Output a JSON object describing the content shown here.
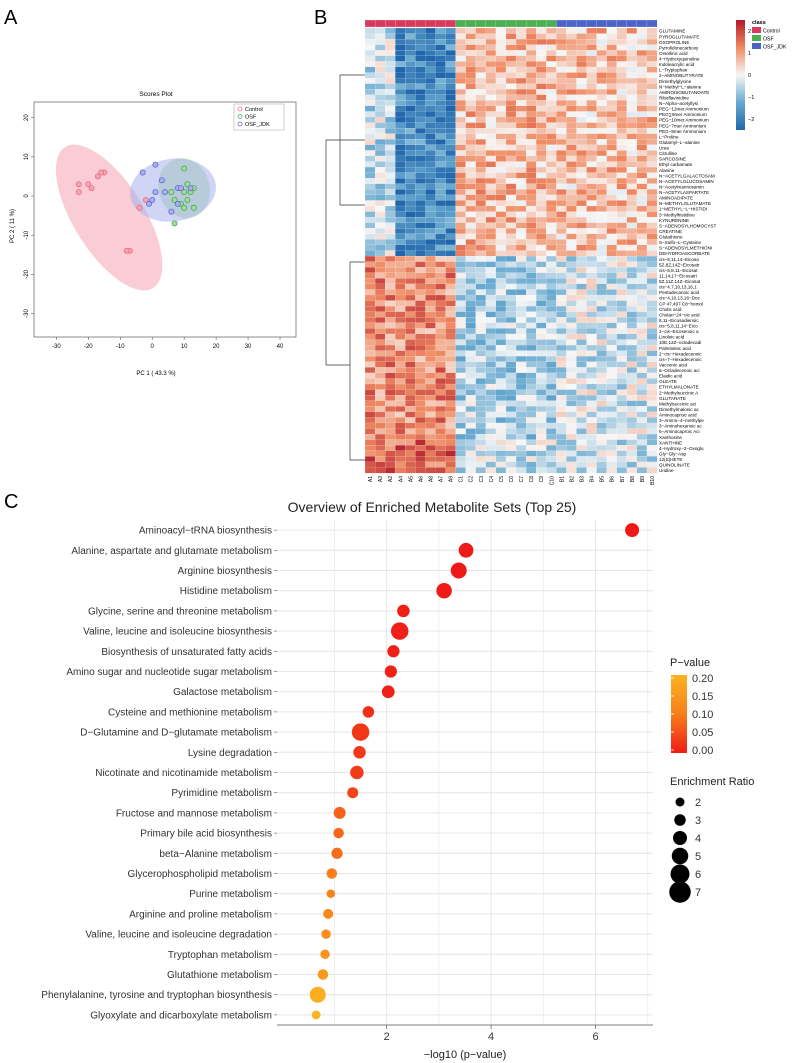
{
  "panel_labels": [
    "A",
    "B",
    "C"
  ],
  "chart_data": [
    {
      "id": "A",
      "type": "scatter",
      "title": "Scores Plot",
      "xlabel": "PC 1 ( 43.3 %)",
      "ylabel": "PC 2 ( 11 %)",
      "xlim": [
        -37,
        45
      ],
      "ylim": [
        -36,
        24
      ],
      "xticks": [
        -30,
        -20,
        -10,
        0,
        10,
        20,
        30,
        40
      ],
      "yticks": [
        -30,
        -20,
        -10,
        0,
        10,
        20
      ],
      "tick_labels_x": [
        "-30",
        "-20",
        "-10",
        "0",
        "10",
        "20",
        "30",
        "40"
      ],
      "tick_labels_y": [
        "-30",
        "-20",
        "-10",
        "0",
        "10",
        "20"
      ],
      "legend_position": "top-right",
      "series": [
        {
          "name": "Control",
          "color": "#e86a78",
          "fill": "#f4a3b5",
          "ellipse": {
            "center": [
              -13.5,
              -5.5
            ],
            "radii": [
              26,
              9
            ],
            "angle_deg": 122
          },
          "points": [
            [
              -23,
              3
            ],
            [
              -20,
              3
            ],
            [
              -17,
              5
            ],
            [
              -23,
              1
            ],
            [
              -19,
              2
            ],
            [
              -15,
              6
            ],
            [
              -16,
              6
            ],
            [
              -4,
              -3
            ],
            [
              -2,
              -1
            ],
            [
              -7,
              -14
            ],
            [
              -8,
              -14
            ]
          ]
        },
        {
          "name": "OSF",
          "color": "#3fa34d",
          "fill": "#9fdc95",
          "ellipse": {
            "center": [
              10,
              2
            ],
            "radii": [
              9.5,
              6.5
            ],
            "angle_deg": 105
          },
          "points": [
            [
              10,
              7
            ],
            [
              11,
              3
            ],
            [
              13,
              2
            ],
            [
              12,
              1
            ],
            [
              11,
              -1
            ],
            [
              13,
              -3
            ],
            [
              10,
              -3
            ],
            [
              7,
              -1
            ],
            [
              10,
              1
            ],
            [
              9,
              -2
            ],
            [
              6,
              1
            ],
            [
              7,
              -7
            ]
          ]
        },
        {
          "name": "OSF_JDK",
          "color": "#5560c8",
          "fill": "#aab0ec",
          "ellipse": {
            "center": [
              6.5,
              1.5
            ],
            "radii": [
              13.5,
              8
            ],
            "angle_deg": 8
          },
          "points": [
            [
              1,
              8
            ],
            [
              -3,
              6
            ],
            [
              3,
              4
            ],
            [
              8,
              2
            ],
            [
              12,
              2
            ],
            [
              4,
              1
            ],
            [
              1,
              1
            ],
            [
              0,
              -1
            ],
            [
              -1,
              -2
            ],
            [
              6,
              -4
            ],
            [
              9,
              2
            ],
            [
              8,
              -2
            ]
          ]
        }
      ]
    },
    {
      "id": "B",
      "type": "heatmap",
      "class_label": "class",
      "classes": [
        {
          "name": "Control",
          "color": "#d83a5e"
        },
        {
          "name": "OSF",
          "color": "#4caf50"
        },
        {
          "name": "OSF_JDK",
          "color": "#4c63c8"
        }
      ],
      "colorbar": {
        "ticks": [
          "2",
          "1",
          "0",
          "−1",
          "−2"
        ],
        "range": [
          -2.5,
          2.5
        ]
      },
      "columns": [
        "A1",
        "A3",
        "A2",
        "A4",
        "A5",
        "A6",
        "A8",
        "A7",
        "A9",
        "C1",
        "C2",
        "C3",
        "C4",
        "C5",
        "C6",
        "C7",
        "C8",
        "C9",
        "C10",
        "B1",
        "B2",
        "B3",
        "B4",
        "B5",
        "B6",
        "B7",
        "B8",
        "B9",
        "B10"
      ],
      "rows": [
        "GLUTAMINE",
        "PYROGLUTAMATE",
        "OXOPROLINE",
        "Pyrrolidonecarboxy",
        "Orsellinic acid",
        "4−Hydroxyquinoline",
        "Indoleacrylic acid",
        "L−Tryptophan",
        "2−AMINOBUTYRATE",
        "Dimethylglycine",
        "N−Methyl−L−alanine",
        "AMINOISOBUTANOATE",
        "Riboflavinidine",
        "N−Alpha−acetyllysi",
        "PEG−12mer Ammonium",
        "PEG∑9mer Ammonium",
        "PEG−10mer Ammonium",
        "PEG−7mer Ammonium",
        "PEG−8mer Ammonium",
        "L−Proline",
        "Glutamyl−L−alanine",
        "Urea",
        "Citrulline",
        "SARCOSINE",
        "Ethyl carbamate",
        "Alanine",
        "N−ACETYLGALACTOSAM",
        "N−ACETYLGLUCOSAMIN",
        "N−Acetylmannosamin",
        "N−ACETYLASPARTATE",
        "AMINOADIPATE",
        "N−METHYLGLUTAMATE",
        "1−METHYL−L−HISTIDI",
        "3−Methylhistidine",
        "KYNURENINE",
        "S−ADENOSYLHOMOCYST",
        "CREATINE",
        "Glutathione",
        "S−Sulfo−L−Cysteine",
        "S−ADENOSYLMETHIONI",
        "DEHYDROASCORBATE",
        "cis−8,11,14−Eicosa",
        "5Z,8Z,14Z−Eicosatr",
        "cis−5,8,11−Eicosat",
        "11,14,17−Eicosatri",
        "5Z,11Z,14Z−Eicosat",
        "cis−4,7,10,13,16,1",
        "Pentadecanoic acid",
        "cis−4,10,13,16−Doc",
        "CP 47,497 C8−homol",
        "Cholic acid",
        "Cholan−24−oic acid",
        "8,11−Eicosadienoic",
        "cis−5,8,11,14−Eico",
        "2−cis−Eicosenoic a",
        "Linoleic acid",
        "10E,12Z−octadecadi",
        "Palmitoleic acid",
        "2−cis−Hexadecenoic",
        "cis−7−Hexadecenoic",
        "Vaccenic acid",
        "6−Octadecenoic aci",
        "Elaidic acid",
        "OLEATE",
        "ETHYLMALONATE",
        "2−Methylsuccinic A",
        "GLUTARATE",
        "Methylsuccinic aci",
        "Dimethylmalonic ac",
        "Aminocaproic acid",
        "3−Amino−4−methylpe",
        "3−Aminohexanoic ac",
        "6−Aminocaproic Aci",
        "Xanthosine",
        "XANTHINE",
        "4−Hydroxy−2−Oxoglu",
        "Gly−Gly−Asp",
        "12(S)HETE",
        "QUINOLINATE",
        "Uridine"
      ]
    },
    {
      "id": "C",
      "type": "scatter",
      "title": "Overview of Enriched Metabolite Sets (Top 25)",
      "xlabel": "−log10 (p−value)",
      "ylabel": "",
      "xlim": [
        -0.1,
        7.1
      ],
      "xticks": [
        2,
        4,
        6
      ],
      "tick_labels_x": [
        "2",
        "4",
        "6"
      ],
      "grid": true,
      "color_legend": {
        "title": "P−value",
        "ticks": [
          "0.20",
          "0.15",
          "0.10",
          "0.05",
          "0.00"
        ],
        "range": [
          0,
          0.22
        ]
      },
      "size_legend": {
        "title": "Enrichment Ratio",
        "values": [
          2,
          3,
          4,
          5,
          6,
          7
        ],
        "labels": [
          "2",
          "3",
          "4",
          "5",
          "6",
          "7"
        ]
      },
      "categories": [
        "Aminoacyl−tRNA biosynthesis",
        "Alanine, aspartate and glutamate metabolism",
        "Arginine biosynthesis",
        "Histidine metabolism",
        "Glycine, serine and threonine metabolism",
        "Valine, leucine and isoleucine biosynthesis",
        "Biosynthesis of unsaturated fatty acids",
        "Amino sugar and nucleotide sugar metabolism",
        "Galactose metabolism",
        "Cysteine and methionine metabolism",
        "D−Glutamine and D−glutamate metabolism",
        "Lysine degradation",
        "Nicotinate and nicotinamide metabolism",
        "Pyrimidine metabolism",
        "Fructose and mannose metabolism",
        "Primary bile acid biosynthesis",
        "beta−Alanine metabolism",
        "Glycerophospholipid metabolism",
        "Purine metabolism",
        "Arginine and proline metabolism",
        "Valine, leucine and isoleucine degradation",
        "Tryptophan metabolism",
        "Glutathione metabolism",
        "Phenylalanine, tyrosine and tryptophan biosynthesis",
        "Glyoxylate and dicarboxylate metabolism"
      ],
      "x": [
        6.7,
        3.52,
        3.38,
        3.1,
        2.32,
        2.25,
        2.13,
        2.08,
        2.03,
        1.65,
        1.5,
        1.48,
        1.43,
        1.35,
        1.1,
        1.08,
        1.05,
        0.95,
        0.93,
        0.88,
        0.84,
        0.82,
        0.78,
        0.68,
        0.65
      ],
      "p_values": [
        0.0,
        0.0003,
        0.0004,
        0.0008,
        0.005,
        0.006,
        0.007,
        0.008,
        0.009,
        0.022,
        0.032,
        0.033,
        0.037,
        0.045,
        0.08,
        0.083,
        0.089,
        0.11,
        0.118,
        0.13,
        0.145,
        0.15,
        0.166,
        0.21,
        0.224
      ],
      "enrichment_ratio": [
        4,
        4.3,
        4.8,
        4.6,
        3.4,
        5.4,
        3.3,
        3.3,
        3.5,
        3.0,
        5.4,
        3.4,
        3.8,
        2.8,
        3.2,
        2.6,
        2.9,
        2.6,
        1.8,
        2.4,
        2.2,
        2.2,
        2.6,
        4.8,
        1.9
      ]
    }
  ]
}
